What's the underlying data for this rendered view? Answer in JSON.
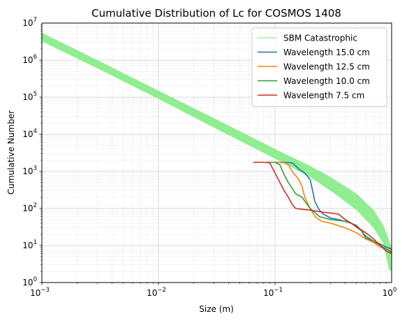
{
  "chart_data": {
    "type": "line",
    "title": "Cumulative Distribution of Lc for COSMOS 1408",
    "xlabel": "Size (m)",
    "ylabel": "Cumulative Number",
    "xscale": "log",
    "yscale": "log",
    "xlim": [
      0.001,
      1
    ],
    "ylim": [
      1,
      10000000
    ],
    "grid": true,
    "legend_position": "top-right",
    "x_major_ticks": [
      {
        "value": 0.001,
        "base": "10",
        "exp": "−3"
      },
      {
        "value": 0.01,
        "base": "10",
        "exp": "−2"
      },
      {
        "value": 0.1,
        "base": "10",
        "exp": "−1"
      },
      {
        "value": 1,
        "base": "10",
        "exp": "0"
      }
    ],
    "y_major_ticks": [
      {
        "value": 1,
        "base": "10",
        "exp": "0"
      },
      {
        "value": 10,
        "base": "10",
        "exp": "1"
      },
      {
        "value": 100,
        "base": "10",
        "exp": "2"
      },
      {
        "value": 1000,
        "base": "10",
        "exp": "3"
      },
      {
        "value": 10000,
        "base": "10",
        "exp": "4"
      },
      {
        "value": 100000,
        "base": "10",
        "exp": "5"
      },
      {
        "value": 1000000,
        "base": "10",
        "exp": "6"
      },
      {
        "value": 10000000,
        "base": "10",
        "exp": "7"
      }
    ],
    "band": {
      "name": "SBM Catastrophic",
      "color": "#90ee90",
      "upper": [
        [
          0.001,
          5500000
        ],
        [
          0.003,
          1000000
        ],
        [
          0.01,
          150000
        ],
        [
          0.03,
          27000
        ],
        [
          0.1,
          4000
        ],
        [
          0.2,
          1400
        ],
        [
          0.3,
          700
        ],
        [
          0.5,
          250
        ],
        [
          0.7,
          90
        ],
        [
          0.85,
          35
        ],
        [
          1.0,
          9
        ]
      ],
      "lower": [
        [
          0.001,
          3200000
        ],
        [
          0.003,
          600000
        ],
        [
          0.01,
          90000
        ],
        [
          0.03,
          15000
        ],
        [
          0.1,
          2200
        ],
        [
          0.2,
          700
        ],
        [
          0.3,
          300
        ],
        [
          0.5,
          90
        ],
        [
          0.7,
          30
        ],
        [
          0.85,
          11
        ],
        [
          0.95,
          2.2
        ],
        [
          1.0,
          2.1
        ]
      ]
    },
    "series": [
      {
        "name": "Wavelength 15.0 cm",
        "color": "#1f77b4",
        "points": [
          [
            0.1,
            1750
          ],
          [
            0.12,
            1750
          ],
          [
            0.14,
            1700
          ],
          [
            0.15,
            1400
          ],
          [
            0.16,
            1150
          ],
          [
            0.18,
            900
          ],
          [
            0.2,
            600
          ],
          [
            0.21,
            300
          ],
          [
            0.22,
            150
          ],
          [
            0.24,
            90
          ],
          [
            0.26,
            70
          ],
          [
            0.3,
            55
          ],
          [
            0.35,
            50
          ],
          [
            0.45,
            40
          ],
          [
            0.55,
            25
          ],
          [
            0.6,
            16
          ],
          [
            0.7,
            13
          ],
          [
            0.8,
            11
          ],
          [
            0.9,
            9
          ],
          [
            1.0,
            8
          ]
        ]
      },
      {
        "name": "Wavelength 12.5 cm",
        "color": "#ff7f0e",
        "points": [
          [
            0.1,
            1750
          ],
          [
            0.12,
            1700
          ],
          [
            0.13,
            1500
          ],
          [
            0.14,
            1000
          ],
          [
            0.16,
            600
          ],
          [
            0.17,
            400
          ],
          [
            0.18,
            200
          ],
          [
            0.2,
            100
          ],
          [
            0.22,
            60
          ],
          [
            0.25,
            45
          ],
          [
            0.3,
            40
          ],
          [
            0.4,
            30
          ],
          [
            0.5,
            22
          ],
          [
            0.6,
            15
          ],
          [
            0.7,
            12
          ],
          [
            0.8,
            9
          ],
          [
            0.9,
            8
          ],
          [
            1.0,
            7
          ]
        ]
      },
      {
        "name": "Wavelength 10.0 cm",
        "color": "#2ca02c",
        "points": [
          [
            0.085,
            1750
          ],
          [
            0.1,
            1750
          ],
          [
            0.11,
            1500
          ],
          [
            0.12,
            800
          ],
          [
            0.13,
            500
          ],
          [
            0.14,
            350
          ],
          [
            0.15,
            250
          ],
          [
            0.17,
            200
          ],
          [
            0.2,
            100
          ],
          [
            0.24,
            60
          ],
          [
            0.3,
            50
          ],
          [
            0.4,
            45
          ],
          [
            0.5,
            35
          ],
          [
            0.55,
            25
          ],
          [
            0.6,
            18
          ],
          [
            0.7,
            13
          ],
          [
            0.8,
            10
          ],
          [
            0.9,
            8
          ],
          [
            1.0,
            6.5
          ]
        ]
      },
      {
        "name": "Wavelength 7.5 cm",
        "color": "#d62728",
        "points": [
          [
            0.065,
            1750
          ],
          [
            0.08,
            1750
          ],
          [
            0.09,
            1700
          ],
          [
            0.1,
            900
          ],
          [
            0.11,
            500
          ],
          [
            0.12,
            300
          ],
          [
            0.13,
            200
          ],
          [
            0.14,
            130
          ],
          [
            0.15,
            100
          ],
          [
            0.17,
            95
          ],
          [
            0.2,
            90
          ],
          [
            0.25,
            80
          ],
          [
            0.3,
            75
          ],
          [
            0.35,
            70
          ],
          [
            0.4,
            50
          ],
          [
            0.45,
            40
          ],
          [
            0.5,
            32
          ],
          [
            0.6,
            22
          ],
          [
            0.7,
            15
          ],
          [
            0.8,
            10
          ],
          [
            0.9,
            7
          ],
          [
            1.0,
            6
          ]
        ]
      }
    ]
  }
}
